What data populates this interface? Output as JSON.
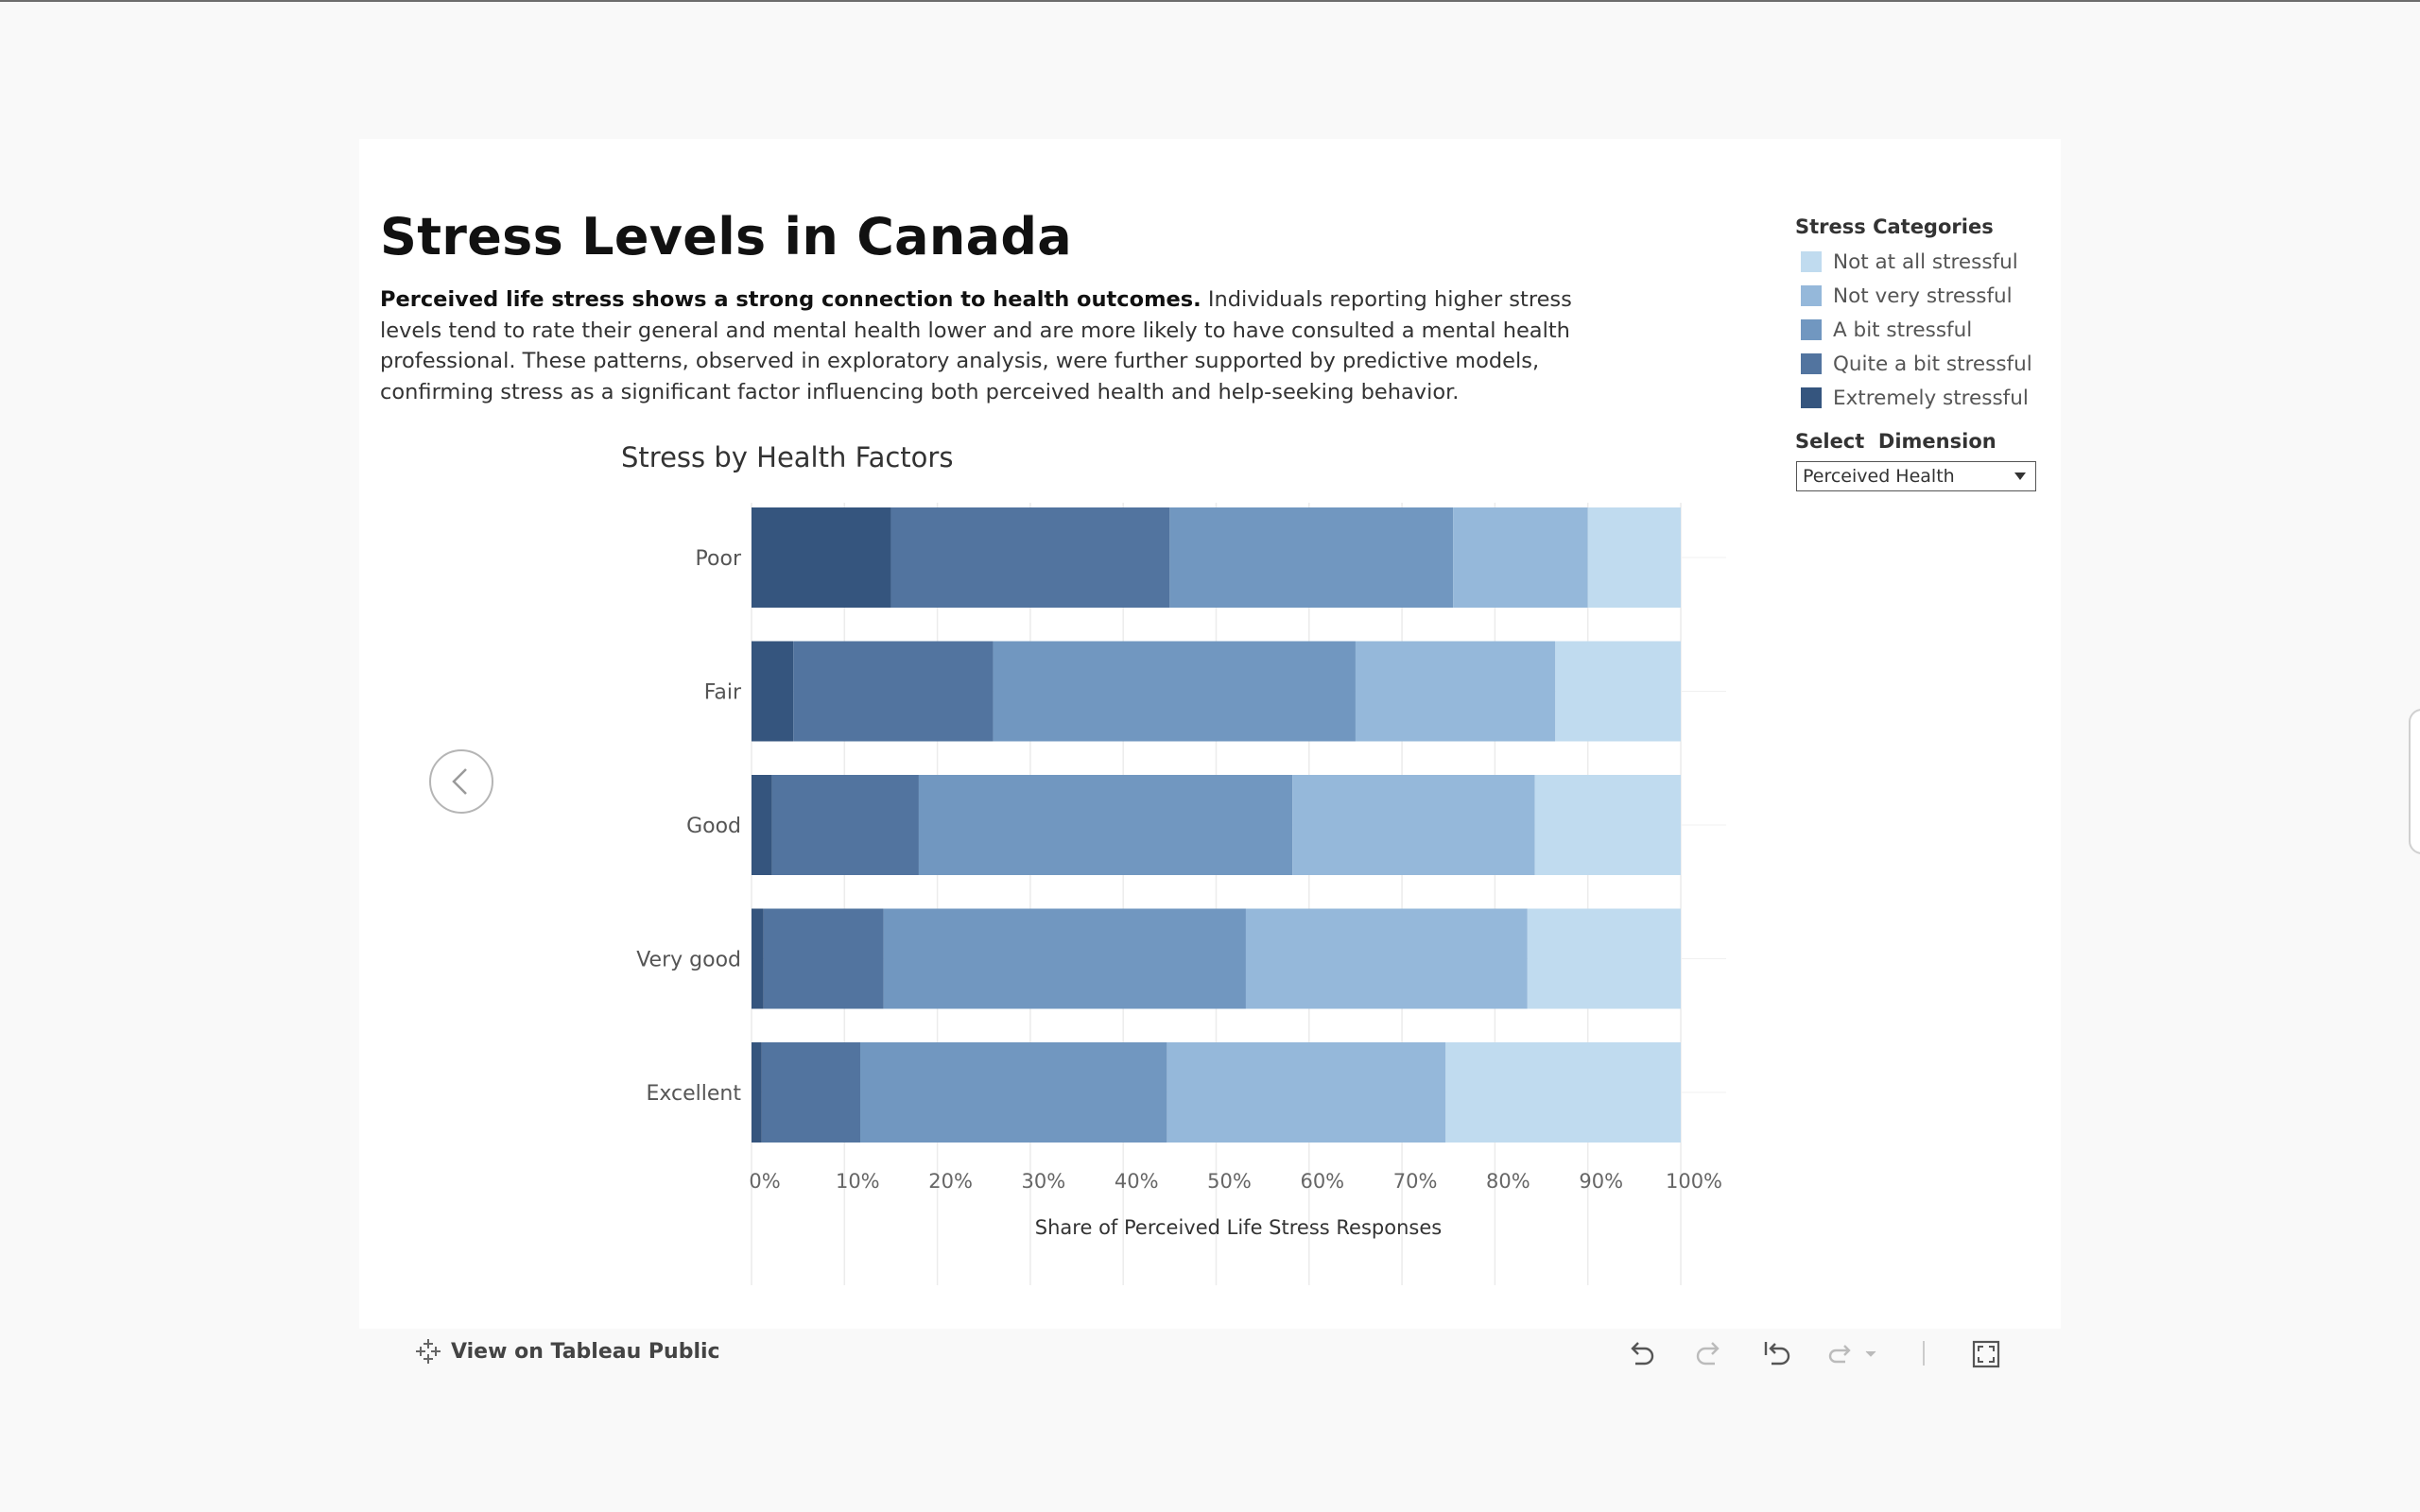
{
  "title": "Stress Levels in Canada",
  "description": {
    "bold": "Perceived life stress shows a strong connection to health outcomes.",
    "rest": " Individuals reporting higher stress levels tend to rate their general and mental health lower and are more likely to have consulted a mental health professional. These patterns, observed in exploratory analysis, were further supported by predictive models, confirming stress as a significant factor influencing both perceived health and help-seeking behavior."
  },
  "legend": {
    "title": "Stress Categories",
    "items": [
      {
        "label": "Not at all stressful",
        "color": "#c0dbef"
      },
      {
        "label": "Not very stressful",
        "color": "#95b8da"
      },
      {
        "label": "A bit stressful",
        "color": "#7197c0"
      },
      {
        "label": "Quite a bit stressful",
        "color": "#52749f"
      },
      {
        "label": "Extremely stressful",
        "color": "#35557e"
      }
    ]
  },
  "dimension": {
    "title": "Select  Dimension",
    "selected": "Perceived Health"
  },
  "toolbar": {
    "view_label": "View on Tableau Public"
  },
  "icons": {
    "prev": "chevron-left-icon",
    "tableau": "tableau-logo-icon",
    "undo": "undo-icon",
    "redo": "redo-icon",
    "revert": "revert-icon",
    "refresh": "refresh-icon",
    "fullscreen": "fullscreen-icon"
  },
  "chart_data": {
    "type": "bar",
    "orientation": "horizontal",
    "stacked": true,
    "title": "Stress by Health Factors",
    "xlabel": "Share of Perceived Life Stress Responses",
    "ylabel": "",
    "xlim": [
      0,
      100
    ],
    "x_ticks": [
      "0%",
      "10%",
      "20%",
      "30%",
      "40%",
      "50%",
      "60%",
      "70%",
      "80%",
      "90%",
      "100%"
    ],
    "grid": true,
    "legend_position": "right",
    "categories": [
      "Poor",
      "Fair",
      "Good",
      "Very good",
      "Excellent"
    ],
    "series": [
      {
        "name": "Extremely stressful",
        "color": "#35557e",
        "values": [
          15,
          4.5,
          2.2,
          1.3,
          1.1
        ]
      },
      {
        "name": "Quite a bit stressful",
        "color": "#52749f",
        "values": [
          30,
          21.5,
          15.8,
          12.9,
          10.6
        ]
      },
      {
        "name": "A bit stressful",
        "color": "#7197c0",
        "values": [
          30.5,
          39,
          40.2,
          39,
          33
        ]
      },
      {
        "name": "Not very stressful",
        "color": "#95b8da",
        "values": [
          14.5,
          21.5,
          26.1,
          30.3,
          30
        ]
      },
      {
        "name": "Not at all stressful",
        "color": "#c0dbef",
        "values": [
          10,
          13.5,
          15.7,
          16.5,
          25.3
        ]
      }
    ]
  }
}
